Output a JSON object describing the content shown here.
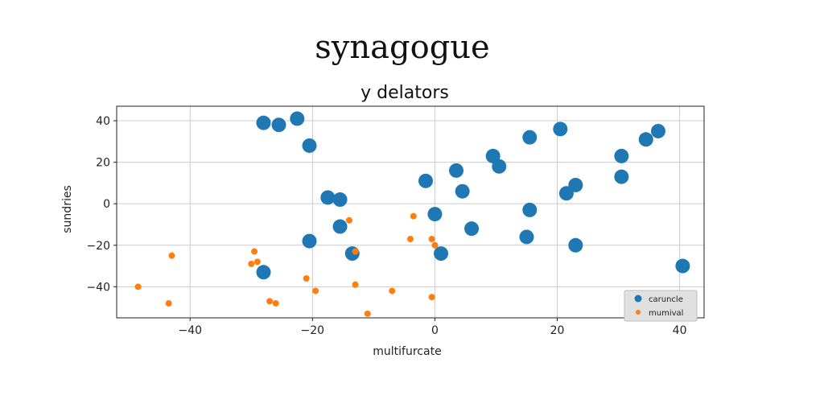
{
  "chart_data": {
    "type": "scatter",
    "title": "synagogue",
    "subtitle": "y delators",
    "xlabel": "multifurcate",
    "ylabel": "sundries",
    "xlim": [
      -52,
      44
    ],
    "ylim": [
      -55,
      47
    ],
    "xticks": [
      -40,
      -20,
      0,
      20,
      40
    ],
    "yticks": [
      -40,
      -20,
      0,
      20,
      40
    ],
    "grid": true,
    "legend_position": "bottom-right",
    "series": [
      {
        "name": "caruncle",
        "color": "#1f77b4",
        "points": [
          [
            -28,
            39
          ],
          [
            -25.5,
            38
          ],
          [
            -22.5,
            41
          ],
          [
            -20.5,
            28
          ],
          [
            -17.5,
            3
          ],
          [
            -15.5,
            2
          ],
          [
            -15.5,
            -11
          ],
          [
            -13.5,
            -24
          ],
          [
            -20.5,
            -18
          ],
          [
            -28,
            -33
          ],
          [
            -1.5,
            11
          ],
          [
            0,
            -5
          ],
          [
            1,
            -24
          ],
          [
            3.5,
            16
          ],
          [
            4.5,
            6
          ],
          [
            6,
            -12
          ],
          [
            9.5,
            23
          ],
          [
            10.5,
            18
          ],
          [
            15.5,
            32
          ],
          [
            15.5,
            -3
          ],
          [
            15,
            -16
          ],
          [
            20.5,
            36
          ],
          [
            21.5,
            5
          ],
          [
            23,
            9
          ],
          [
            23,
            -20
          ],
          [
            30.5,
            23
          ],
          [
            30.5,
            13
          ],
          [
            34.5,
            31
          ],
          [
            36.5,
            35
          ],
          [
            40.5,
            -30
          ]
        ]
      },
      {
        "name": "mumival",
        "color": "#ff7f0e",
        "points": [
          [
            -48.5,
            -40
          ],
          [
            -43.5,
            -48
          ],
          [
            -43,
            -25
          ],
          [
            -29.5,
            -23
          ],
          [
            -30,
            -29
          ],
          [
            -29,
            -28
          ],
          [
            -27,
            -47
          ],
          [
            -26,
            -48
          ],
          [
            -21,
            -36
          ],
          [
            -19.5,
            -42
          ],
          [
            -14,
            -8
          ],
          [
            -13,
            -23
          ],
          [
            -13,
            -39
          ],
          [
            -11,
            -53
          ],
          [
            -7,
            -42
          ],
          [
            -4,
            -17
          ],
          [
            -3.5,
            -6
          ],
          [
            -0.5,
            -45
          ],
          [
            -0.5,
            -17
          ],
          [
            0,
            -20
          ]
        ]
      }
    ]
  }
}
